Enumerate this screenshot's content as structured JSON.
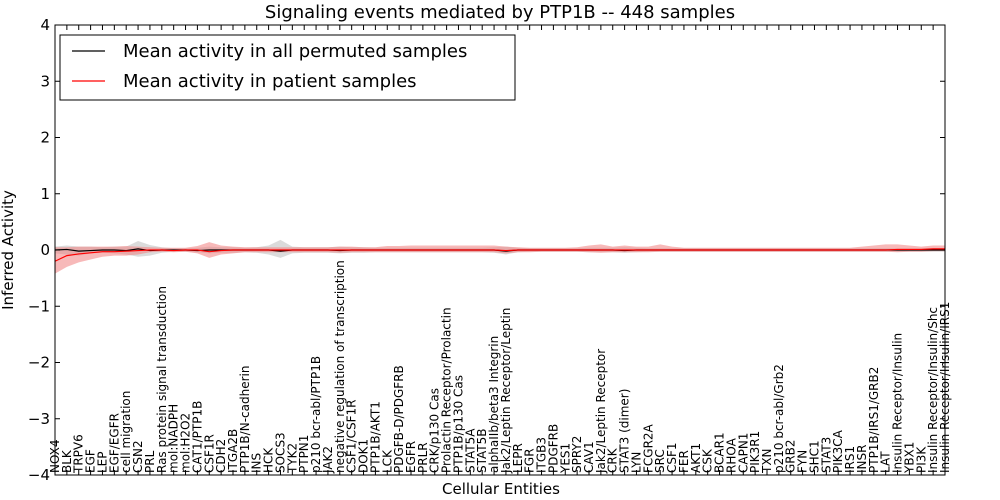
{
  "chart_data": {
    "type": "line",
    "title": "Signaling events mediated by PTP1B -- 448 samples",
    "xlabel": "Cellular Entities",
    "ylabel": "Inferred Activity",
    "ylim": [
      -4,
      4
    ],
    "yticks": [
      -4,
      -3,
      -2,
      -1,
      0,
      1,
      2,
      3,
      4
    ],
    "legend_position": "top-left",
    "colors": {
      "patient": "#ff0000",
      "permuted": "#000000",
      "patient_band": "#f08080",
      "permuted_band": "#b0b0b0"
    },
    "categories": [
      "NOX4",
      "BLK",
      "TRPV6",
      "EGF",
      "LEP",
      "EGF/EGFR",
      "cell migration",
      "CSN2",
      "PRL",
      "Ras protein signal transduction",
      "mol:NADPH",
      "mol:H2O2",
      "CAT1/PTP1B",
      "CSF1R",
      "CDH2",
      "ITGA2B",
      "PTP1B/N-cadherin",
      "INS",
      "HCK",
      "SOCS3",
      "TYK2",
      "PTPN1",
      "p210 bcr-abl/PTP1B",
      "JAK2",
      "negative regulation of transcription",
      "CSF1/CSF1R",
      "DOK1",
      "PTP1B/AKT1",
      "LCK",
      "PDGFB-D/PDGFRB",
      "EGFR",
      "PRLR",
      "CRK/p130 Cas",
      "Prolactin Receptor/Prolactin",
      "PTP1B/p130 Cas",
      "STAT5A",
      "STAT5B",
      "alphaIIb/beta3 Integrin",
      "Jak2/Leptin Receptor/Leptin",
      "LEPR",
      "FGR",
      "ITGB3",
      "PDGFRB",
      "YES1",
      "SPRY2",
      "CAV1",
      "Jak2/Leptin Receptor",
      "CRK",
      "STAT3 (dimer)",
      "LYN",
      "FCGR2A",
      "SRC",
      "CSF1",
      "FER",
      "AKT1",
      "CSK",
      "BCAR1",
      "RHOA",
      "CAPN1",
      "PIK3R1",
      "TXN",
      "p210 bcr-abl/Grb2",
      "GRB2",
      "FYN",
      "SHC1",
      "STAT3",
      "PIK3CA",
      "IRS1",
      "INSR",
      "PTP1B/IRS1/GRB2",
      "LAT",
      "Insulin Receptor/Insulin",
      "YBX1",
      "PI3K",
      "Insulin Receptor/Insulin/Shc",
      "Insulin Receptor/Insulin/IRS1"
    ],
    "series": [
      {
        "name": "Mean activity in all permuted samples",
        "values": [
          0.0,
          0.01,
          -0.02,
          -0.01,
          0.0,
          0.0,
          -0.01,
          0.02,
          -0.01,
          0.0,
          0.0,
          0.0,
          -0.01,
          0.0,
          0.0,
          0.0,
          0.0,
          0.0,
          0.0,
          -0.02,
          0.0,
          0.0,
          0.0,
          0.0,
          -0.01,
          0.0,
          0.0,
          0.0,
          0.0,
          0.0,
          0.0,
          0.0,
          0.0,
          0.0,
          0.0,
          0.0,
          0.0,
          0.0,
          -0.02,
          0.0,
          0.0,
          0.0,
          0.0,
          0.0,
          0.0,
          0.0,
          0.0,
          0.0,
          -0.01,
          0.0,
          0.0,
          0.0,
          0.0,
          0.0,
          0.0,
          0.0,
          0.0,
          0.0,
          0.0,
          0.0,
          0.0,
          0.0,
          0.0,
          0.0,
          0.0,
          0.0,
          0.0,
          0.0,
          0.0,
          0.0,
          0.0,
          0.0,
          0.0,
          0.0,
          0.0,
          0.0
        ],
        "lower": [
          -0.06,
          -0.08,
          -0.1,
          -0.06,
          -0.05,
          -0.06,
          -0.08,
          -0.12,
          -0.1,
          -0.05,
          -0.03,
          -0.03,
          -0.04,
          -0.06,
          -0.05,
          -0.05,
          -0.04,
          -0.05,
          -0.08,
          -0.14,
          -0.06,
          -0.05,
          -0.05,
          -0.05,
          -0.06,
          -0.05,
          -0.05,
          -0.04,
          -0.04,
          -0.04,
          -0.04,
          -0.04,
          -0.04,
          -0.04,
          -0.04,
          -0.04,
          -0.04,
          -0.05,
          -0.08,
          -0.04,
          -0.03,
          -0.03,
          -0.03,
          -0.03,
          -0.03,
          -0.04,
          -0.04,
          -0.04,
          -0.05,
          -0.04,
          -0.03,
          -0.03,
          -0.03,
          -0.03,
          -0.03,
          -0.03,
          -0.03,
          -0.03,
          -0.03,
          -0.03,
          -0.03,
          -0.03,
          -0.03,
          -0.03,
          -0.03,
          -0.03,
          -0.03,
          -0.03,
          -0.03,
          -0.03,
          -0.03,
          -0.03,
          -0.03,
          -0.03,
          -0.03,
          -0.03
        ],
        "upper": [
          0.06,
          0.08,
          0.06,
          0.06,
          0.05,
          0.06,
          0.06,
          0.16,
          0.09,
          0.05,
          0.03,
          0.03,
          0.04,
          0.06,
          0.05,
          0.05,
          0.04,
          0.05,
          0.08,
          0.18,
          0.06,
          0.05,
          0.05,
          0.05,
          0.06,
          0.05,
          0.05,
          0.04,
          0.04,
          0.04,
          0.04,
          0.04,
          0.04,
          0.04,
          0.04,
          0.04,
          0.04,
          0.05,
          0.06,
          0.04,
          0.03,
          0.03,
          0.03,
          0.03,
          0.03,
          0.04,
          0.04,
          0.04,
          0.05,
          0.04,
          0.03,
          0.03,
          0.03,
          0.03,
          0.03,
          0.03,
          0.03,
          0.03,
          0.03,
          0.03,
          0.03,
          0.03,
          0.03,
          0.03,
          0.03,
          0.03,
          0.03,
          0.03,
          0.03,
          0.03,
          0.03,
          0.03,
          0.03,
          0.03,
          0.03,
          0.03
        ]
      },
      {
        "name": "Mean activity in patient samples",
        "values": [
          -0.2,
          -0.1,
          -0.07,
          -0.05,
          -0.03,
          -0.03,
          -0.02,
          -0.01,
          0.0,
          0.0,
          -0.01,
          0.0,
          0.0,
          -0.03,
          -0.01,
          0.0,
          0.0,
          0.0,
          0.0,
          0.0,
          0.0,
          0.0,
          0.0,
          0.0,
          0.0,
          0.0,
          0.0,
          0.0,
          0.0,
          0.0,
          0.0,
          0.0,
          0.0,
          0.0,
          0.0,
          0.0,
          0.0,
          0.0,
          -0.01,
          0.0,
          0.0,
          0.0,
          0.0,
          0.0,
          0.0,
          0.0,
          0.0,
          0.0,
          0.0,
          0.0,
          0.0,
          0.0,
          0.0,
          0.0,
          0.0,
          0.0,
          0.0,
          0.0,
          0.0,
          0.0,
          0.0,
          0.0,
          0.0,
          0.0,
          0.0,
          0.0,
          0.0,
          0.0,
          0.0,
          0.0,
          0.0,
          0.01,
          0.01,
          0.01,
          0.02,
          0.02
        ],
        "lower": [
          -0.42,
          -0.3,
          -0.22,
          -0.17,
          -0.12,
          -0.1,
          -0.1,
          -0.08,
          -0.04,
          -0.03,
          -0.04,
          -0.03,
          -0.06,
          -0.14,
          -0.08,
          -0.06,
          -0.04,
          -0.04,
          -0.04,
          -0.04,
          -0.04,
          -0.04,
          -0.04,
          -0.04,
          -0.05,
          -0.04,
          -0.04,
          -0.04,
          -0.04,
          -0.04,
          -0.04,
          -0.04,
          -0.04,
          -0.04,
          -0.04,
          -0.04,
          -0.04,
          -0.04,
          -0.06,
          -0.04,
          -0.04,
          -0.03,
          -0.03,
          -0.03,
          -0.03,
          -0.04,
          -0.05,
          -0.04,
          -0.04,
          -0.04,
          -0.04,
          -0.03,
          -0.03,
          -0.03,
          -0.03,
          -0.03,
          -0.03,
          -0.03,
          -0.03,
          -0.03,
          -0.03,
          -0.03,
          -0.03,
          -0.03,
          -0.03,
          -0.03,
          -0.03,
          -0.03,
          -0.03,
          -0.03,
          -0.03,
          -0.04,
          -0.03,
          -0.03,
          -0.02,
          -0.02
        ],
        "upper": [
          0.05,
          0.05,
          0.06,
          0.06,
          0.06,
          0.06,
          0.07,
          0.06,
          0.05,
          0.04,
          0.04,
          0.04,
          0.07,
          0.14,
          0.08,
          0.06,
          0.05,
          0.05,
          0.05,
          0.05,
          0.05,
          0.05,
          0.05,
          0.05,
          0.06,
          0.06,
          0.05,
          0.05,
          0.07,
          0.07,
          0.08,
          0.08,
          0.08,
          0.08,
          0.08,
          0.08,
          0.08,
          0.08,
          0.06,
          0.05,
          0.04,
          0.04,
          0.04,
          0.04,
          0.05,
          0.08,
          0.1,
          0.06,
          0.08,
          0.06,
          0.06,
          0.1,
          0.06,
          0.04,
          0.04,
          0.04,
          0.04,
          0.04,
          0.04,
          0.04,
          0.04,
          0.04,
          0.04,
          0.04,
          0.04,
          0.04,
          0.04,
          0.04,
          0.06,
          0.08,
          0.1,
          0.1,
          0.08,
          0.06,
          0.08,
          0.08
        ]
      }
    ]
  }
}
